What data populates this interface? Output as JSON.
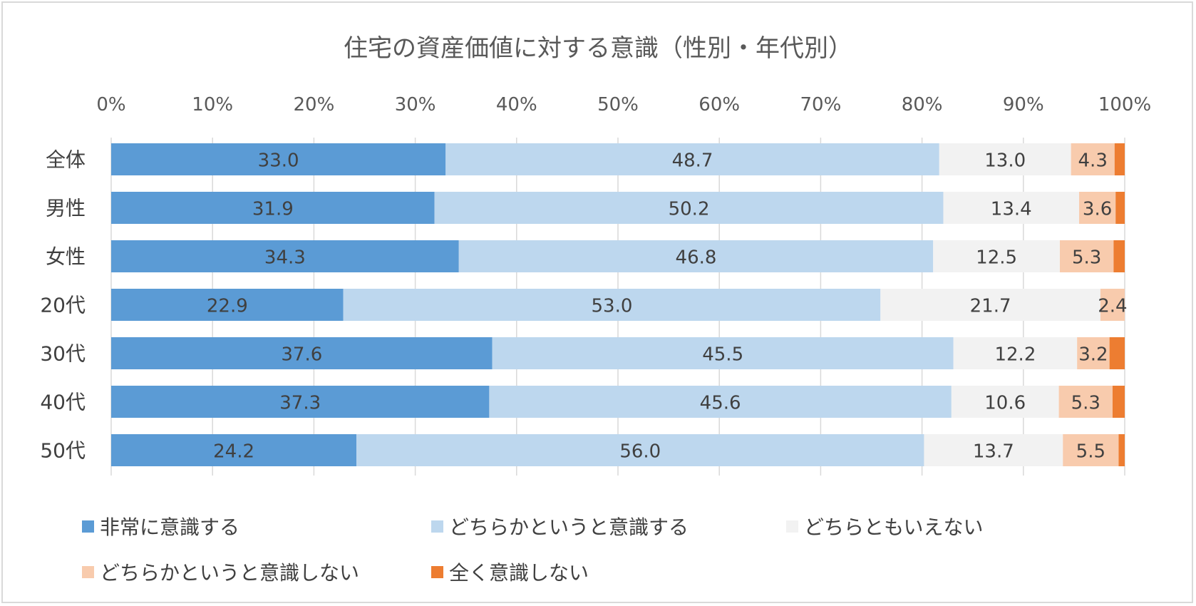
{
  "chart_data": {
    "type": "bar",
    "orientation": "horizontal",
    "stacked": "percent",
    "title": "住宅の資産価値に対する意識（性別・年代別）",
    "categories": [
      "全体",
      "男性",
      "女性",
      "20代",
      "30代",
      "40代",
      "50代"
    ],
    "xlim": [
      0,
      100
    ],
    "x_ticks": [
      "0%",
      "10%",
      "20%",
      "30%",
      "40%",
      "50%",
      "60%",
      "70%",
      "80%",
      "90%",
      "100%"
    ],
    "x_axis_position": "top",
    "grid": "vertical",
    "legend_position": "bottom",
    "series": [
      {
        "name": "非常に意識する",
        "color": "#5b9bd5",
        "values": [
          33.0,
          31.9,
          34.3,
          22.9,
          37.6,
          37.3,
          24.2
        ],
        "labels": [
          "33.0",
          "31.9",
          "34.3",
          "22.9",
          "37.6",
          "37.3",
          "24.2"
        ]
      },
      {
        "name": "どちらかというと意識する",
        "color": "#bdd7ee",
        "values": [
          48.7,
          50.2,
          46.8,
          53.0,
          45.5,
          45.6,
          56.0
        ],
        "labels": [
          "48.7",
          "50.2",
          "46.8",
          "53.0",
          "45.5",
          "45.6",
          "56.0"
        ]
      },
      {
        "name": "どちらともいえない",
        "color": "#f2f2f2",
        "values": [
          13.0,
          13.4,
          12.5,
          21.7,
          12.2,
          10.6,
          13.7
        ],
        "labels": [
          "13.0",
          "13.4",
          "12.5",
          "21.7",
          "12.2",
          "10.6",
          "13.7"
        ]
      },
      {
        "name": "どちらかというと意識しない",
        "color": "#f8cbad",
        "values": [
          4.3,
          3.6,
          5.3,
          2.4,
          3.2,
          5.3,
          5.5
        ],
        "labels": [
          "4.3",
          "3.6",
          "5.3",
          "2.4",
          "3.2",
          "5.3",
          "5.5"
        ]
      },
      {
        "name": "全く意識しない",
        "color": "#ed7d31",
        "values": [
          1.0,
          0.9,
          1.1,
          0.0,
          1.5,
          1.2,
          0.6
        ]
      }
    ]
  }
}
